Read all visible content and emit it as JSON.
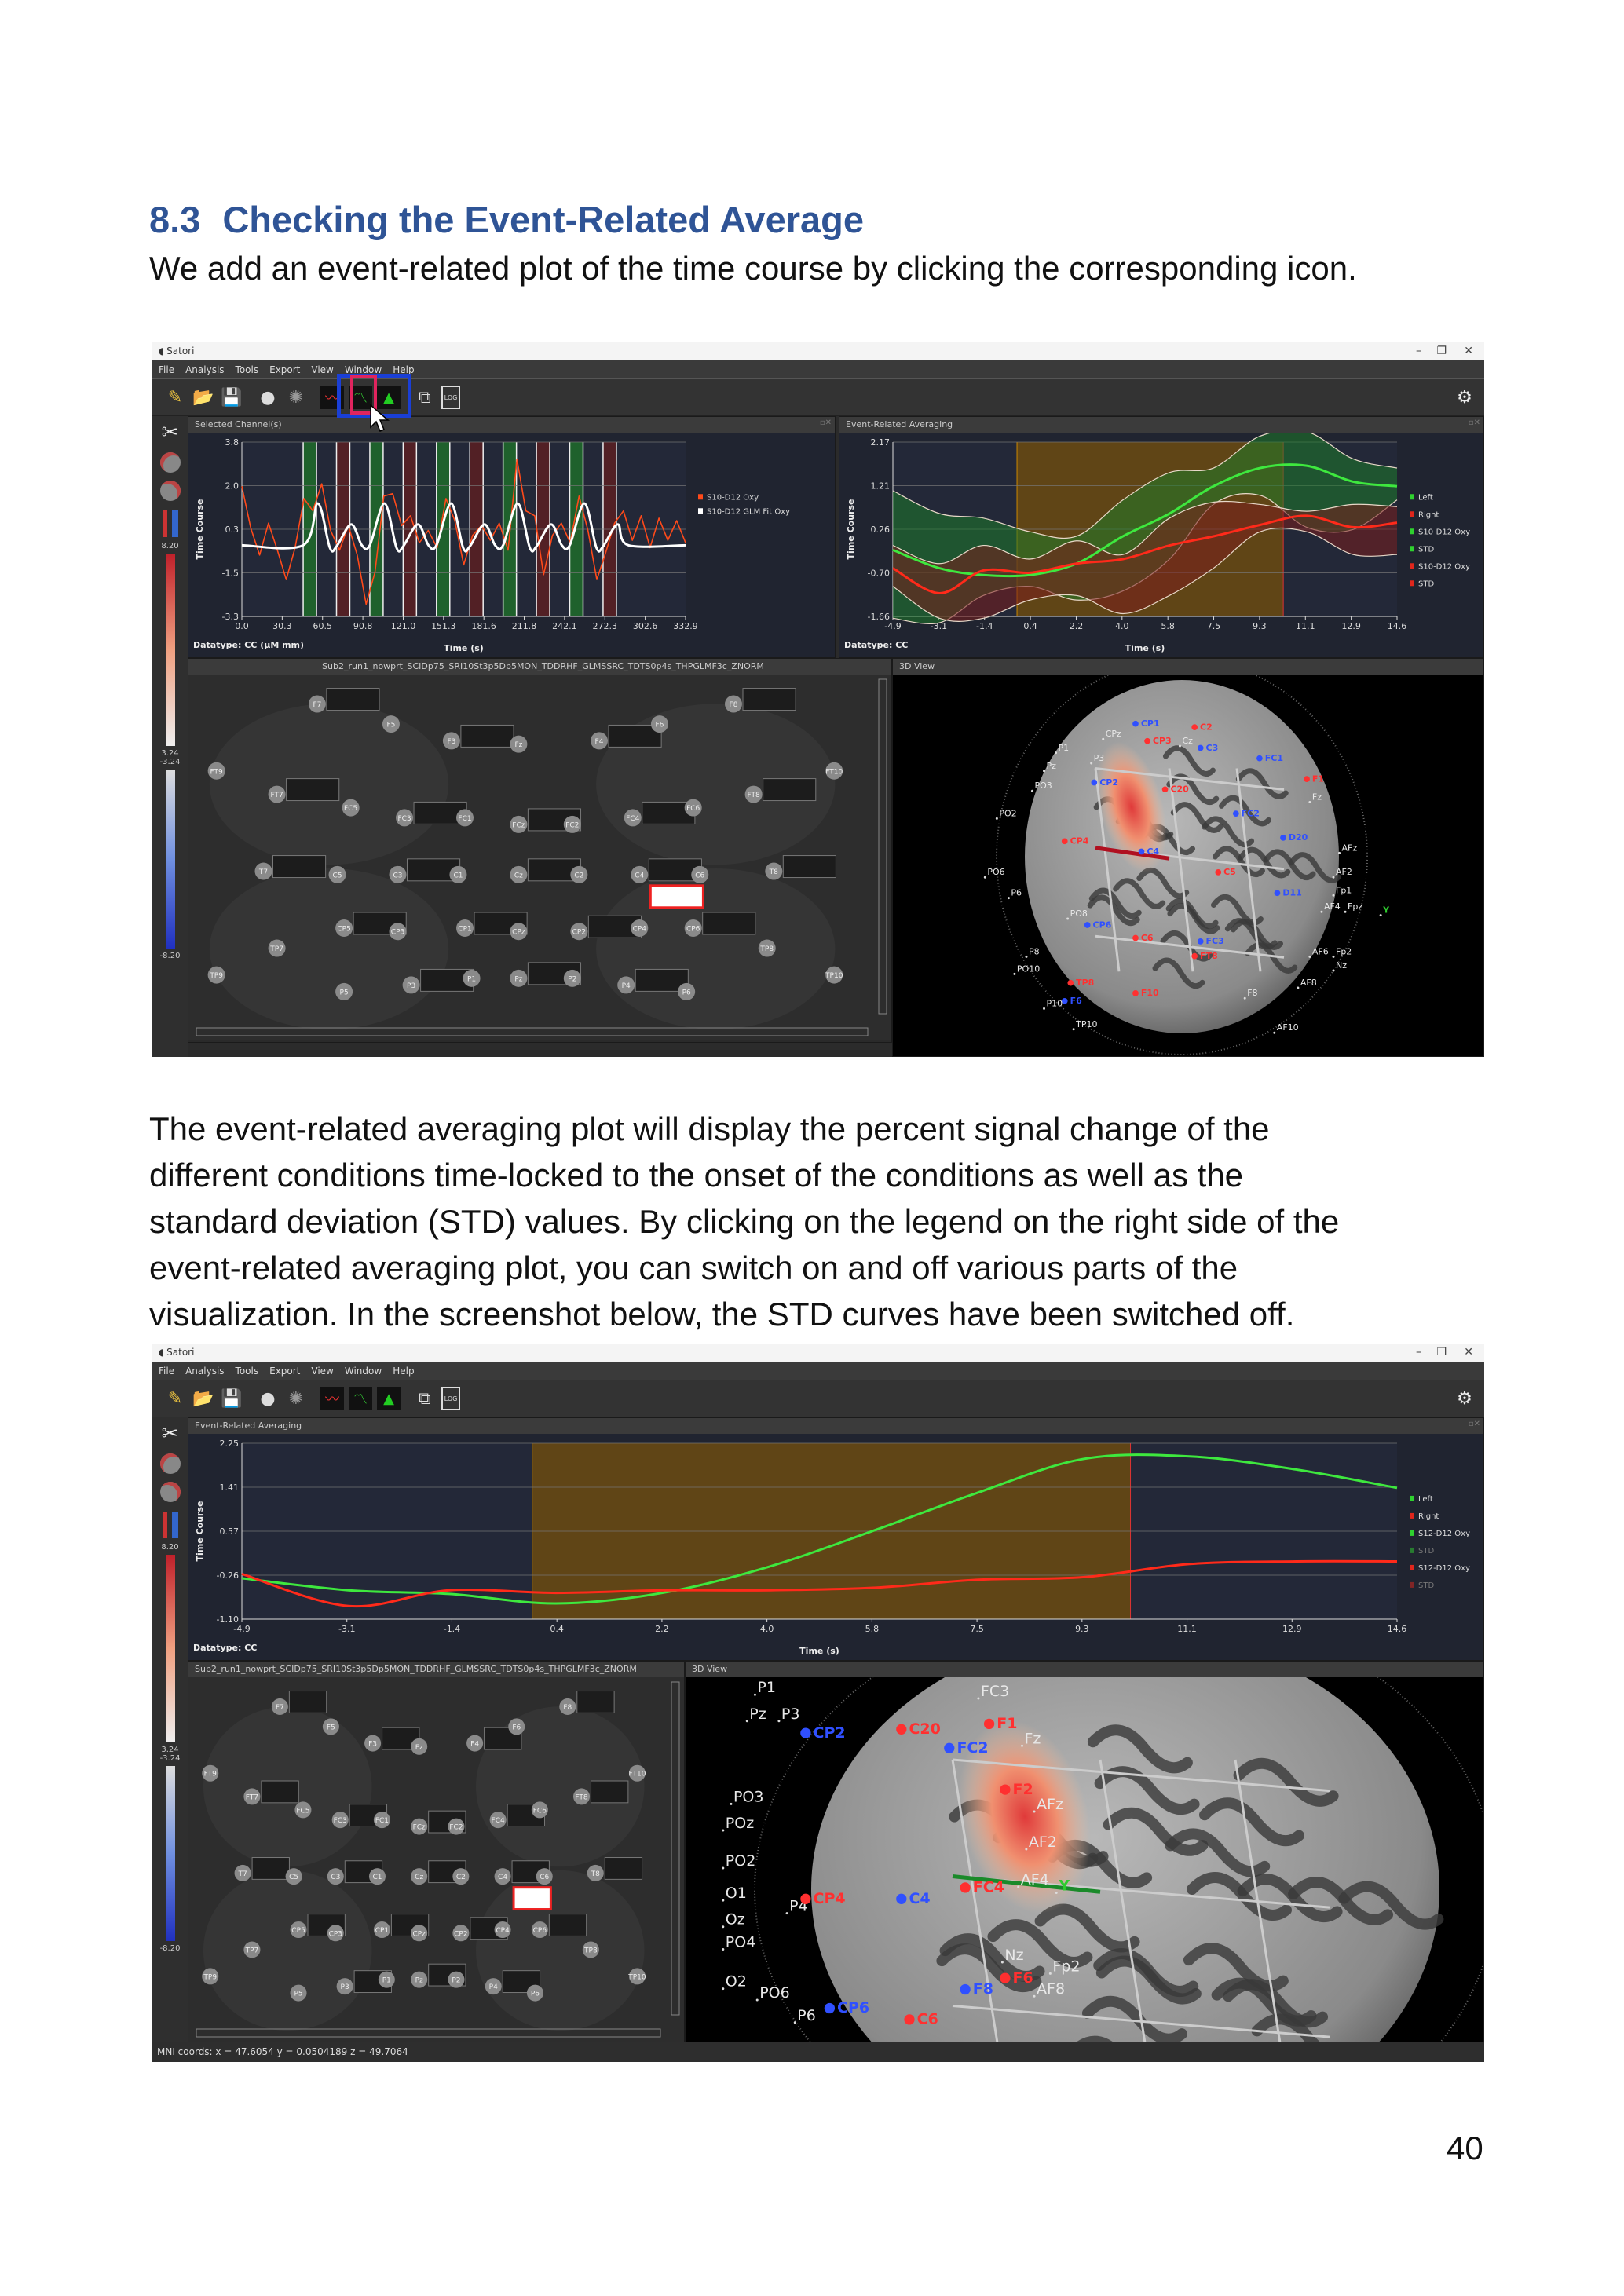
{
  "section": {
    "number": "8.3",
    "title": "Checking the Event-Related Average"
  },
  "intro": "We add an event-related plot of the time course by clicking the corresponding icon.",
  "body_lines": [
    "The event-related averaging plot will display the percent signal change of the",
    "different conditions time-locked to the onset of the conditions as well as the",
    "standard deviation (STD) values. By clicking on the legend on the right side of the",
    "event-related averaging plot, you can switch on and off various parts of the",
    "visualization. In the screenshot below, the STD curves have been switched off."
  ],
  "page_number": "40",
  "app": {
    "title": "Satori",
    "menu": [
      "File",
      "Analysis",
      "Tools",
      "Export",
      "View",
      "Window",
      "Help"
    ],
    "toolbar_icons": [
      "wand-icon",
      "open-folder-icon",
      "save-icon",
      "head-icon",
      "brain-icon",
      "selected-channel-plot-icon",
      "event-related-averaging-icon",
      "glm-bars-icon",
      "layout-tree-icon",
      "log-icon"
    ],
    "log_label": "LOG",
    "colorbar": {
      "max": "8.20",
      "pos_threshold": "3.24",
      "neg_threshold": "-3.24",
      "min": "-8.20"
    },
    "colors": {
      "accent_green": "#2fd12f",
      "accent_red": "#e0261c",
      "highlight_blue": "#1a3fd6",
      "highlight_red": "#e0245e"
    }
  },
  "screenshot1": {
    "selected_channel_panel": "Selected Channel(s)",
    "era_panel": "Event-Related Averaging",
    "map_file": "Sub2_run1_nowprt_SCIDp75_SRI10St3p5Dp5MON_TDDRHF_GLMSSRC_TDTS0p4s_THPGLMF3c_ZNORM",
    "view3d_panel": "3D View"
  },
  "screenshot2": {
    "era_panel": "Event-Related Averaging",
    "map_file": "Sub2_run1_nowprt_SCIDp75_SRI10St3p5Dp5MON_TDDRHF_GLMSSRC_TDTS0p4s_THPGLMF3c_ZNORM",
    "view3d_panel": "3D View",
    "status": "MNI coords: x = 47.6054 y = 0.0504189 z = 49.7064"
  },
  "electrodes": [
    "F7",
    "F5",
    "F3",
    "Fz",
    "F4",
    "F6",
    "F8",
    "FT9",
    "FT7",
    "FC5",
    "FC3",
    "FC1",
    "FCz",
    "FC2",
    "FC4",
    "FC6",
    "FT8",
    "FT10",
    "T7",
    "C5",
    "C3",
    "C1",
    "Cz",
    "C2",
    "C4",
    "C6",
    "T8",
    "TP7",
    "CP5",
    "CP3",
    "CP1",
    "CPz",
    "CP2",
    "CP4",
    "CP6",
    "TP8",
    "TP9",
    "P5",
    "P3",
    "P1",
    "Pz",
    "P2",
    "P4",
    "P6",
    "TP10"
  ],
  "brain_labels_1": [
    {
      "t": "CP1",
      "k": "d"
    },
    {
      "t": "CPz",
      "k": "r"
    },
    {
      "t": "C2",
      "k": "s"
    },
    {
      "t": "CP3",
      "k": "s"
    },
    {
      "t": "Cz",
      "k": "r"
    },
    {
      "t": "C3",
      "k": "d"
    },
    {
      "t": "FC1",
      "k": "d"
    },
    {
      "t": "P1",
      "k": "r"
    },
    {
      "t": "Pz",
      "k": "r"
    },
    {
      "t": "P3",
      "k": "r"
    },
    {
      "t": "CP2",
      "k": "d"
    },
    {
      "t": "C20",
      "k": "s"
    },
    {
      "t": "PO3",
      "k": "r"
    },
    {
      "t": "PO2",
      "k": "r"
    },
    {
      "t": "F1",
      "k": "s"
    },
    {
      "t": "Fz",
      "k": "r"
    },
    {
      "t": "FC2",
      "k": "d"
    },
    {
      "t": "CP4",
      "k": "s"
    },
    {
      "t": "C4",
      "k": "d"
    },
    {
      "t": "D20",
      "k": "d"
    },
    {
      "t": "AFz",
      "k": "r"
    },
    {
      "t": "AF2",
      "k": "r"
    },
    {
      "t": "Fp1",
      "k": "r"
    },
    {
      "t": "C5",
      "k": "s"
    },
    {
      "t": "D11",
      "k": "d"
    },
    {
      "t": "AF4",
      "k": "r"
    },
    {
      "t": "Fpz",
      "k": "r"
    },
    {
      "t": "PO6",
      "k": "r"
    },
    {
      "t": "P6",
      "k": "r"
    },
    {
      "t": "PO8",
      "k": "r"
    },
    {
      "t": "CP6",
      "k": "d"
    },
    {
      "t": "C6",
      "k": "s"
    },
    {
      "t": "FC3",
      "k": "d"
    },
    {
      "t": "F10",
      "k": "s"
    },
    {
      "t": "AF6",
      "k": "r"
    },
    {
      "t": "Fp2",
      "k": "r"
    },
    {
      "t": "Nz",
      "k": "r"
    },
    {
      "t": "P8",
      "k": "r"
    },
    {
      "t": "PO10",
      "k": "r"
    },
    {
      "t": "TP8",
      "k": "s"
    },
    {
      "t": "F6",
      "k": "d"
    },
    {
      "t": "FT8",
      "k": "s"
    },
    {
      "t": "AF8",
      "k": "r"
    },
    {
      "t": "F8",
      "k": "r"
    },
    {
      "t": "P10",
      "k": "r"
    },
    {
      "t": "TP10",
      "k": "r"
    },
    {
      "t": "AF10",
      "k": "r"
    },
    {
      "t": "Y",
      "k": "axis"
    }
  ],
  "brain_labels_2": [
    {
      "t": "P1",
      "k": "r"
    },
    {
      "t": "Pz",
      "k": "r"
    },
    {
      "t": "P3",
      "k": "r"
    },
    {
      "t": "FC3",
      "k": "r"
    },
    {
      "t": "CP2",
      "k": "d"
    },
    {
      "t": "C20",
      "k": "s"
    },
    {
      "t": "F1",
      "k": "s"
    },
    {
      "t": "Fz",
      "k": "r"
    },
    {
      "t": "FC2",
      "k": "d"
    },
    {
      "t": "F2",
      "k": "s"
    },
    {
      "t": "AFz",
      "k": "r"
    },
    {
      "t": "PO3",
      "k": "r"
    },
    {
      "t": "POz",
      "k": "r"
    },
    {
      "t": "PO2",
      "k": "r"
    },
    {
      "t": "O1",
      "k": "r"
    },
    {
      "t": "P4",
      "k": "r"
    },
    {
      "t": "CP4",
      "k": "s"
    },
    {
      "t": "C4",
      "k": "d"
    },
    {
      "t": "FC4",
      "k": "s"
    },
    {
      "t": "AF2",
      "k": "r"
    },
    {
      "t": "AF4",
      "k": "r"
    },
    {
      "t": "Oz",
      "k": "r"
    },
    {
      "t": "PO4",
      "k": "r"
    },
    {
      "t": "O2",
      "k": "r"
    },
    {
      "t": "PO6",
      "k": "r"
    },
    {
      "t": "P6",
      "k": "r"
    },
    {
      "t": "CP6",
      "k": "d"
    },
    {
      "t": "C6",
      "k": "s"
    },
    {
      "t": "F8",
      "k": "d"
    },
    {
      "t": "Nz",
      "k": "r"
    },
    {
      "t": "F6",
      "k": "s"
    },
    {
      "t": "AF8",
      "k": "r"
    },
    {
      "t": "Fp2",
      "k": "r"
    },
    {
      "t": "Y",
      "k": "axis"
    }
  ],
  "chart_data": [
    {
      "id": "selected-channel",
      "type": "line",
      "xlabel": "Time (s)",
      "ylabel": "Time Course",
      "datatype_label": "Datatype: CC (µM mm)",
      "xlim": [
        0,
        332.9
      ],
      "ylim": [
        -3.3,
        3.8
      ],
      "xticks": [
        "0.0",
        "30.3",
        "60.5",
        "90.8",
        "121.0",
        "151.3",
        "181.6",
        "211.8",
        "242.1",
        "272.3",
        "302.6",
        "332.9"
      ],
      "yticks": [
        "-3.3",
        "-1.5",
        "0.3",
        "2.0",
        "3.8"
      ],
      "grid": true,
      "legend_position": "right",
      "regions": [
        {
          "from": 46,
          "to": 56,
          "color": "#1f6b2a"
        },
        {
          "from": 71,
          "to": 81,
          "color": "#5a1e22"
        },
        {
          "from": 96,
          "to": 106,
          "color": "#1f6b2a"
        },
        {
          "from": 121,
          "to": 131,
          "color": "#5a1e22"
        },
        {
          "from": 146,
          "to": 156,
          "color": "#1f6b2a"
        },
        {
          "from": 171,
          "to": 181,
          "color": "#5a1e22"
        },
        {
          "from": 196,
          "to": 206,
          "color": "#1f6b2a"
        },
        {
          "from": 221,
          "to": 231,
          "color": "#5a1e22"
        },
        {
          "from": 246,
          "to": 256,
          "color": "#1f6b2a"
        },
        {
          "from": 271,
          "to": 281,
          "color": "#5a1e22"
        }
      ],
      "series": [
        {
          "name": "S10-D12 Oxy",
          "color": "#ff4a1a",
          "x_step": 6.658,
          "values": [
            2.0,
            0.3,
            -0.8,
            0.5,
            -0.6,
            -1.8,
            -0.5,
            1.5,
            1.0,
            2.1,
            0.2,
            -0.6,
            0.4,
            -0.8,
            -2.8,
            -1.5,
            1.6,
            1.7,
            0.4,
            0.8,
            -0.3,
            0.2,
            -0.5,
            1.5,
            0.6,
            -1.2,
            0.0,
            0.4,
            -0.2,
            0.5,
            -0.6,
            3.1,
            1.0,
            0.8,
            -1.6,
            0.0,
            0.5,
            -0.3,
            1.6,
            0.2,
            -1.8,
            -0.7,
            0.5,
            1.0,
            -0.2,
            0.8,
            -0.5,
            0.7,
            -0.2,
            0.6,
            -0.3
          ]
        },
        {
          "name": "S10-D12 GLM Fit Oxy",
          "color": "#ffffff",
          "points": [
            [
              0,
              -0.4
            ],
            [
              46,
              -0.4
            ],
            [
              57,
              1.3
            ],
            [
              66,
              -0.5
            ],
            [
              71,
              -0.45
            ],
            [
              82,
              0.45
            ],
            [
              90,
              -0.4
            ],
            [
              96,
              -0.4
            ],
            [
              107,
              1.3
            ],
            [
              116,
              -0.5
            ],
            [
              121,
              -0.45
            ],
            [
              132,
              0.45
            ],
            [
              140,
              -0.4
            ],
            [
              146,
              -0.4
            ],
            [
              157,
              1.3
            ],
            [
              166,
              -0.5
            ],
            [
              171,
              -0.45
            ],
            [
              182,
              0.45
            ],
            [
              190,
              -0.4
            ],
            [
              196,
              -0.4
            ],
            [
              207,
              1.3
            ],
            [
              216,
              -0.5
            ],
            [
              221,
              -0.45
            ],
            [
              232,
              0.45
            ],
            [
              240,
              -0.4
            ],
            [
              246,
              -0.4
            ],
            [
              257,
              1.3
            ],
            [
              266,
              -0.5
            ],
            [
              271,
              -0.45
            ],
            [
              282,
              0.45
            ],
            [
              290,
              -0.4
            ],
            [
              332.9,
              -0.4
            ]
          ]
        }
      ],
      "legend": [
        {
          "label": "S10-D12 Oxy",
          "color": "#ff4a1a"
        },
        {
          "label": "S10-D12 GLM Fit Oxy",
          "color": "#ffffff"
        }
      ]
    },
    {
      "id": "era-1",
      "type": "line",
      "xlabel": "Time (s)",
      "ylabel": "Time Course",
      "datatype_label": "Datatype: CC",
      "xlim": [
        -4.9,
        14.6
      ],
      "ylim": [
        -1.66,
        2.17
      ],
      "xticks": [
        "-4.9",
        "-3.1",
        "-1.4",
        "0.4",
        "2.2",
        "4.0",
        "5.8",
        "7.5",
        "9.3",
        "11.1",
        "12.9",
        "14.6"
      ],
      "yticks": [
        "-1.66",
        "-0.70",
        "0.26",
        "1.21",
        "2.17"
      ],
      "grid": true,
      "legend_position": "right",
      "regions": [
        {
          "from": -0.1,
          "to": 10.2,
          "color": "#6b4a10"
        }
      ],
      "x": [
        -4.9,
        -3.1,
        -1.4,
        0.4,
        2.2,
        4.0,
        5.8,
        7.5,
        9.3,
        11.1,
        12.9,
        14.6
      ],
      "bands": [
        {
          "color": "#1d7a2a",
          "upper": [
            1.1,
            0.6,
            0.5,
            0.2,
            0.1,
            0.9,
            1.5,
            1.6,
            2.3,
            2.4,
            1.8,
            1.6
          ],
          "lower": [
            -1.7,
            -1.8,
            -1.2,
            -1.0,
            -1.3,
            -1.1,
            -0.4,
            0.8,
            1.0,
            0.3,
            0.25,
            0.9
          ]
        },
        {
          "color": "#7a1d1d",
          "upper": [
            -0.1,
            -0.5,
            -0.1,
            -0.4,
            0.0,
            -0.3,
            0.5,
            0.85,
            0.8,
            0.65,
            0.8,
            0.75
          ],
          "lower": [
            -1.0,
            -1.7,
            -1.7,
            -1.3,
            -1.2,
            -1.6,
            -1.2,
            -0.6,
            0.2,
            0.2,
            -0.3,
            -0.3
          ]
        }
      ],
      "series": [
        {
          "name": "S10-D12 Oxy (Left)",
          "color": "#3ee83e",
          "values": [
            -0.2,
            -0.6,
            -0.75,
            -0.75,
            -0.5,
            0.1,
            0.6,
            1.2,
            1.6,
            1.65,
            1.3,
            1.2
          ]
        },
        {
          "name": "S10-D12 Oxy (Right)",
          "color": "#ff2a1a",
          "values": [
            -0.6,
            -1.15,
            -0.65,
            -0.7,
            -0.5,
            -0.4,
            -0.1,
            0.1,
            0.35,
            0.55,
            0.3,
            0.4
          ]
        }
      ],
      "legend": [
        {
          "label": "Left",
          "color": "#2fd12f"
        },
        {
          "label": "Right",
          "color": "#e0261c"
        },
        {
          "label": "S10-D12 Oxy",
          "color": "#2fd12f"
        },
        {
          "label": "STD",
          "color": "#2fd12f"
        },
        {
          "label": "S10-D12 Oxy",
          "color": "#e0261c"
        },
        {
          "label": "STD",
          "color": "#e0261c"
        }
      ]
    },
    {
      "id": "era-2",
      "type": "line",
      "xlabel": "Time (s)",
      "ylabel": "Time Course",
      "datatype_label": "Datatype: CC",
      "xlim": [
        -4.9,
        14.6
      ],
      "ylim": [
        -1.1,
        2.25
      ],
      "xticks": [
        "-4.9",
        "-3.1",
        "-1.4",
        "0.4",
        "2.2",
        "4.0",
        "5.8",
        "7.5",
        "9.3",
        "11.1",
        "12.9",
        "14.6"
      ],
      "yticks": [
        "-1.10",
        "-0.26",
        "0.57",
        "1.41",
        "2.25"
      ],
      "grid": true,
      "legend_position": "right",
      "regions": [
        {
          "from": 0.0,
          "to": 10.1,
          "color": "#6b4a10"
        }
      ],
      "x": [
        -4.9,
        -3.1,
        -1.4,
        0.4,
        2.2,
        4.0,
        5.8,
        7.5,
        9.3,
        11.1,
        12.9,
        14.6
      ],
      "series": [
        {
          "name": "S12-D12 Oxy (Left)",
          "color": "#3ee83e",
          "values": [
            -0.32,
            -0.55,
            -0.62,
            -0.8,
            -0.6,
            -0.1,
            0.6,
            1.3,
            1.95,
            2.0,
            1.75,
            1.4
          ]
        },
        {
          "name": "S12-D12 Oxy (Right)",
          "color": "#ff2a1a",
          "values": [
            -0.24,
            -0.85,
            -0.55,
            -0.6,
            -0.55,
            -0.55,
            -0.5,
            -0.35,
            -0.3,
            -0.05,
            0.0,
            0.0
          ]
        }
      ],
      "legend": [
        {
          "label": "Left",
          "color": "#2fd12f"
        },
        {
          "label": "Right",
          "color": "#e0261c"
        },
        {
          "label": "S12-D12 Oxy",
          "color": "#2fd12f"
        },
        {
          "label": "STD",
          "color": "#2fd12f",
          "dim": true
        },
        {
          "label": "S12-D12 Oxy",
          "color": "#e0261c"
        },
        {
          "label": "STD",
          "color": "#e0261c",
          "dim": true
        }
      ]
    }
  ]
}
